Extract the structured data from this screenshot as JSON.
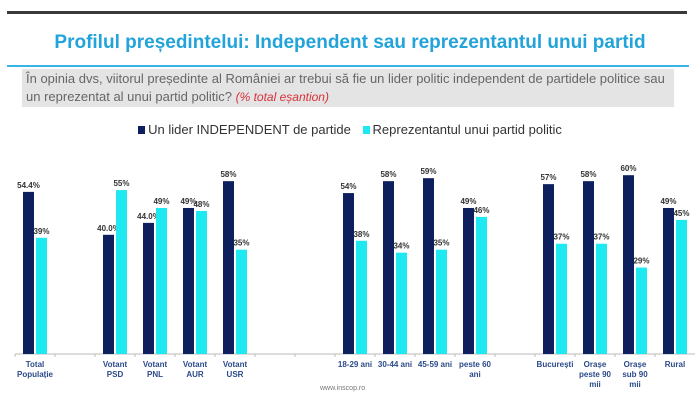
{
  "header": {
    "title": "Profilul președintelui: Independent sau reprezentantul unui partid",
    "question": "În opinia dvs, viitorul președinte al României ar trebui să fie un lider politic independent de partidele politice sau un reprezentat al unui partid politic?",
    "question_note": "(% total eșantion)"
  },
  "footer": {
    "source": "www.inscop.ro"
  },
  "chart_data": {
    "type": "bar",
    "legend_position": "top",
    "grid": false,
    "ylim": [
      0,
      65
    ],
    "categories": [
      "Total Populație",
      "",
      "Votant PSD",
      "Votant PNL",
      "Votant AUR",
      "Votant USR",
      "",
      "",
      "18-29 ani",
      "30-44 ani",
      "45-59 ani",
      "peste 60 ani",
      "",
      "București",
      "Orașe peste 90 mii",
      "Orașe sub 90 mii",
      "Rural"
    ],
    "series": [
      {
        "name": "Un lider INDEPENDENT de partide",
        "color": "#0d1f5c",
        "values": [
          54.4,
          null,
          40.0,
          44.0,
          49,
          58,
          null,
          null,
          54,
          58,
          59,
          49,
          null,
          57,
          58,
          60,
          49
        ],
        "labels": [
          "54.4%",
          "",
          "40.0%",
          "44.0%",
          "49%",
          "58%",
          "",
          "",
          "54%",
          "58%",
          "59%",
          "49%",
          "",
          "57%",
          "58%",
          "60%",
          "49%"
        ]
      },
      {
        "name": "Reprezentantul unui partid politic",
        "color": "#1ee8f0",
        "values": [
          39,
          null,
          55,
          49,
          48,
          35,
          null,
          null,
          38,
          34,
          35,
          46,
          null,
          37,
          37,
          29,
          45
        ],
        "labels": [
          "39%",
          "",
          "55%",
          "49%",
          "48%",
          "35%",
          "",
          "",
          "38%",
          "34%",
          "35%",
          "46%",
          "",
          "37%",
          "37%",
          "29%",
          "45%"
        ]
      }
    ]
  }
}
